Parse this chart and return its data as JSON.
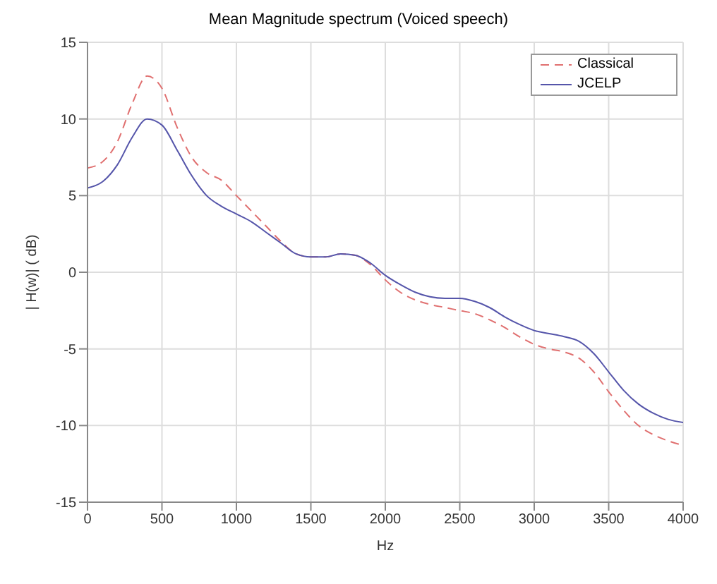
{
  "chart_data": {
    "type": "line",
    "title": "Mean Magnitude spectrum (Voiced speech)",
    "xlabel": "Hz",
    "ylabel": "| H(w)|     ( dB)",
    "x": [
      0,
      100,
      200,
      300,
      400,
      500,
      600,
      700,
      800,
      900,
      1000,
      1100,
      1200,
      1300,
      1400,
      1500,
      1600,
      1700,
      1800,
      1900,
      2000,
      2100,
      2200,
      2300,
      2400,
      2500,
      2600,
      2700,
      2800,
      2900,
      3000,
      3100,
      3200,
      3300,
      3400,
      3500,
      3600,
      3700,
      3800,
      3900,
      4000
    ],
    "series": [
      {
        "name": "Classical",
        "color": "#e07070",
        "line_style": "dashed",
        "values": [
          6.8,
          7.2,
          8.5,
          11,
          12.8,
          12,
          9.5,
          7.5,
          6.5,
          6,
          5,
          4,
          3,
          2,
          1.2,
          1,
          1,
          1.2,
          1.1,
          0.5,
          -0.5,
          -1.3,
          -1.8,
          -2.1,
          -2.3,
          -2.5,
          -2.7,
          -3.1,
          -3.6,
          -4.2,
          -4.7,
          -5,
          -5.2,
          -5.6,
          -6.5,
          -7.8,
          -9,
          -10,
          -10.6,
          -11,
          -11.3
        ]
      },
      {
        "name": "JCELP",
        "color": "#5555aa",
        "line_style": "solid",
        "values": [
          5.5,
          5.9,
          7,
          8.8,
          10,
          9.6,
          8,
          6.3,
          5,
          4.3,
          3.8,
          3.3,
          2.6,
          1.9,
          1.2,
          1,
          1,
          1.2,
          1.1,
          0.6,
          -0.2,
          -0.8,
          -1.3,
          -1.6,
          -1.7,
          -1.7,
          -1.9,
          -2.3,
          -2.9,
          -3.4,
          -3.8,
          -4,
          -4.2,
          -4.5,
          -5.3,
          -6.5,
          -7.7,
          -8.6,
          -9.2,
          -9.6,
          -9.8
        ]
      }
    ],
    "xlim": [
      0,
      4000
    ],
    "xticks": [
      0,
      500,
      1000,
      1500,
      2000,
      2500,
      3000,
      3500,
      4000
    ],
    "ylim": [
      -15,
      15
    ],
    "yticks": [
      -15,
      -10,
      -5,
      0,
      5,
      10,
      15
    ],
    "grid": true,
    "legend": "top right",
    "marker": "none"
  }
}
